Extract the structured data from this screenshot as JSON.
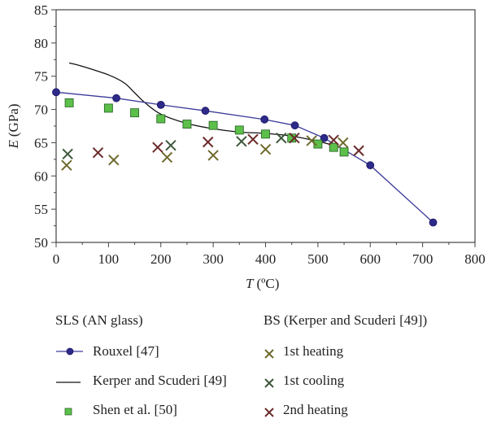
{
  "chart_data": {
    "type": "scatter",
    "xlabel": "T",
    "xlabel_unit": "(ºC)",
    "ylabel": "E",
    "ylabel_unit": "(GPa)",
    "xlim": [
      0,
      800
    ],
    "ylim": [
      50,
      85
    ],
    "xticks": [
      "0",
      "100",
      "200",
      "300",
      "400",
      "500",
      "600",
      "700",
      "800"
    ],
    "yticks": [
      "50",
      "55",
      "60",
      "65",
      "70",
      "75",
      "80",
      "85"
    ],
    "legend_groups": [
      {
        "title": "SLS (AN glass)",
        "items": [
          "Rouxel [47]",
          "Kerper and Scuderi [49]",
          "Shen et al. [50]"
        ]
      },
      {
        "title": "BS (Kerper and Scuderi [49])",
        "items": [
          "1st heating",
          "1st cooling",
          "2nd heating"
        ]
      }
    ],
    "series": [
      {
        "name": "Rouxel [47]",
        "style": "line-circle",
        "color": "#3b3b9a",
        "x": [
          0,
          115,
          200,
          285,
          398,
          456,
          512,
          600,
          720
        ],
        "y": [
          72.6,
          71.7,
          70.7,
          69.8,
          68.5,
          67.6,
          65.7,
          61.6,
          53.0
        ]
      },
      {
        "name": "Kerper and Scuderi [49]",
        "style": "line",
        "color": "#111111",
        "x": [
          25,
          50,
          100,
          130,
          150,
          170,
          200,
          250,
          300,
          350,
          400,
          450,
          500,
          540
        ],
        "y": [
          77.0,
          76.5,
          75.2,
          74.0,
          72.5,
          71.0,
          69.3,
          67.9,
          67.1,
          66.6,
          66.4,
          66.0,
          65.2,
          64.4
        ]
      },
      {
        "name": "Shen et al. [50]",
        "style": "square",
        "color": "#5cbf4a",
        "x": [
          25,
          100,
          150,
          200,
          250,
          300,
          350,
          400,
          450,
          500,
          530,
          550
        ],
        "y": [
          71.0,
          70.2,
          69.5,
          68.6,
          67.8,
          67.6,
          66.9,
          66.3,
          65.7,
          64.8,
          64.3,
          63.6
        ]
      },
      {
        "name": "1st heating",
        "style": "cross",
        "color": "#6e6a2c",
        "x": [
          20,
          110,
          212,
          300,
          400,
          488,
          548
        ],
        "y": [
          61.6,
          62.4,
          62.8,
          63.1,
          64.0,
          65.3,
          65.0
        ]
      },
      {
        "name": "1st cooling",
        "style": "cross",
        "color": "#3e573c",
        "x": [
          22,
          219,
          354,
          430
        ],
        "y": [
          63.3,
          64.6,
          65.2,
          65.7
        ]
      },
      {
        "name": "2nd heating",
        "style": "cross",
        "color": "#6b2a2a",
        "x": [
          80,
          194,
          290,
          376,
          455,
          530,
          578
        ],
        "y": [
          63.5,
          64.3,
          65.1,
          65.5,
          65.7,
          65.4,
          63.8
        ]
      }
    ]
  }
}
